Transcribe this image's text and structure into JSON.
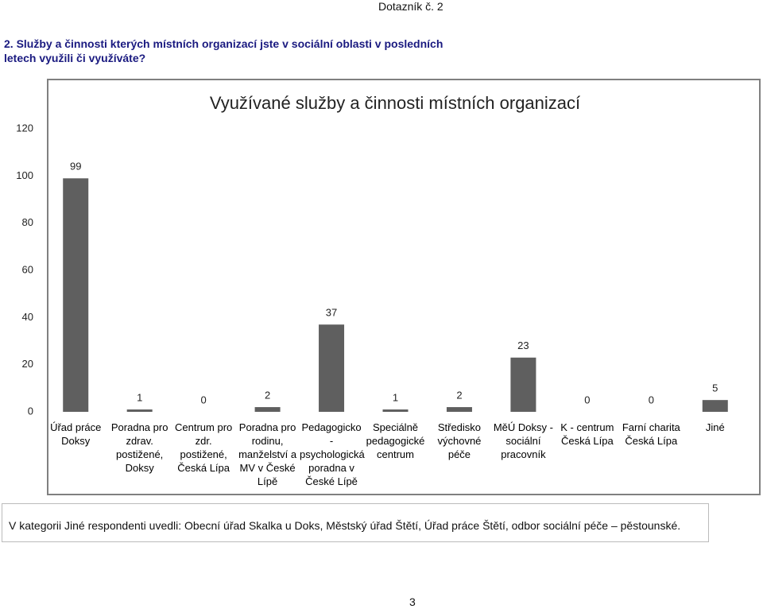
{
  "header": "Dotazník č. 2",
  "question": "2. Služby a činnosti kterých místních organizací jste v sociální oblasti v posledních letech využili či využíváte?",
  "chart_data": {
    "type": "bar",
    "title": "Využívané služby a činnosti místních organizací",
    "categories": [
      "Úřad práce Doksy",
      "Poradna pro zdrav. postižené, Doksy",
      "Centrum pro zdr. postižené, Česká Lípa",
      "Poradna pro rodinu, manželství a MV v České Lípě",
      "Pedagogicko - psychologická poradna v České Lípě",
      "Speciálně pedagogické centrum",
      "Středisko výchovné péče",
      "MěÚ Doksy - sociální pracovník",
      "K - centrum Česká Lípa",
      "Farní charita Česká Lípa",
      "Jiné"
    ],
    "values": [
      99,
      1,
      0,
      2,
      37,
      1,
      2,
      23,
      0,
      0,
      5
    ],
    "color": "#5f5f5f",
    "ylim": [
      0,
      120
    ],
    "yticks": [
      0,
      20,
      40,
      60,
      80,
      100,
      120
    ],
    "grid": false
  },
  "note": "V kategorii Jiné respondenti uvedli: Obecní úřad Skalka u Doks, Městský úřad Štětí, Úřad práce Štětí, odbor sociální péče – pěstounské.",
  "page_number": "3"
}
